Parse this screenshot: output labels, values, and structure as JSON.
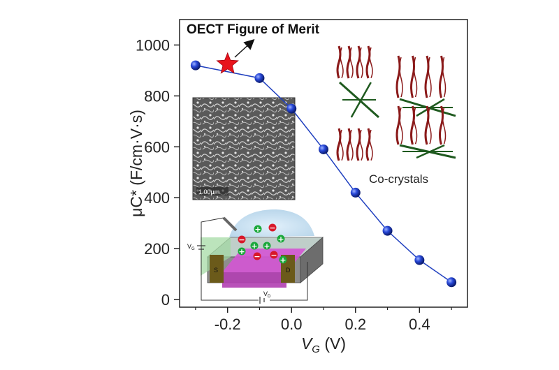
{
  "chart_data": {
    "type": "line",
    "xlabel_main": "V",
    "xlabel_sub": "G",
    "xlabel_unit": " (V)",
    "ylabel": "μC* (F/cm·V·s)",
    "xlim": [
      -0.35,
      0.55
    ],
    "ylim": [
      -30,
      1100
    ],
    "x_ticks": [
      -0.2,
      0.0,
      0.2,
      0.4
    ],
    "x_tick_labels": [
      "-0.2",
      "0.0",
      "0.2",
      "0.4"
    ],
    "y_ticks": [
      0,
      200,
      400,
      600,
      800,
      1000
    ],
    "y_tick_labels": [
      "0",
      "200",
      "400",
      "600",
      "800",
      "1000"
    ],
    "series": [
      {
        "color": "#1f3fbf",
        "x": [
          -0.3,
          -0.1,
          0.0,
          0.1,
          0.2,
          0.3,
          0.4,
          0.5
        ],
        "y": [
          920,
          870,
          750,
          590,
          420,
          270,
          155,
          68
        ]
      }
    ],
    "highlight": {
      "x": -0.2,
      "y": 925,
      "marker": "star",
      "color": "#e8141c"
    },
    "annotations": {
      "merit": "OECT Figure of Merit",
      "cocrystal": "Co-crystals",
      "sem_scale": "1.00μm"
    },
    "device_labels": {
      "source": "S",
      "drain": "D",
      "vg": "V",
      "vg_sub": "G",
      "vd": "V",
      "vd_sub": "D"
    },
    "colors": {
      "line": "#1f3fbf",
      "star": "#e8141c",
      "molecule_red": "#8b1a1a",
      "molecule_green": "#1f5a1f",
      "channel": "#d455d4"
    }
  }
}
